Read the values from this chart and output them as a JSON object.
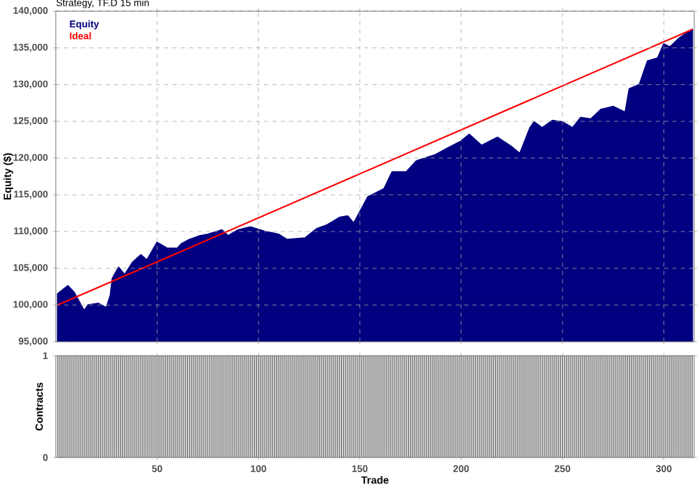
{
  "chart_data": [
    {
      "type": "area",
      "title": "Strategy, TF.D 15 min",
      "ylabel": "Equity ($)",
      "xlim": [
        0,
        315
      ],
      "ylim": [
        95000,
        140000
      ],
      "xticks": [
        50,
        100,
        150,
        200,
        250,
        300
      ],
      "yticks": [
        {
          "value": 95000,
          "label": "95,000"
        },
        {
          "value": 100000,
          "label": "100,000"
        },
        {
          "value": 105000,
          "label": "105,000"
        },
        {
          "value": 110000,
          "label": "110,000"
        },
        {
          "value": 115000,
          "label": "115,000"
        },
        {
          "value": 120000,
          "label": "120,000"
        },
        {
          "value": 125000,
          "label": "125,000"
        },
        {
          "value": 130000,
          "label": "130,000"
        },
        {
          "value": 135000,
          "label": "135,000"
        },
        {
          "value": 140000,
          "label": "140,000"
        }
      ],
      "grid": true,
      "legend": "top left",
      "tick_labels": "y",
      "series": [
        {
          "name": "Equity",
          "color": "#000080",
          "x": [
            1,
            6,
            9,
            12,
            14,
            16,
            21,
            25,
            27,
            28,
            31,
            34,
            38,
            42,
            45,
            50,
            55,
            60,
            62,
            66,
            71,
            75,
            82,
            85,
            90,
            96,
            103,
            110,
            114,
            123,
            129,
            134,
            140,
            144,
            147,
            154,
            162,
            166,
            173,
            178,
            187,
            193,
            200,
            204,
            210,
            218,
            225,
            229,
            234,
            236,
            240,
            245,
            250,
            255,
            259,
            264,
            269,
            275,
            281,
            283,
            288,
            292,
            297,
            300,
            303,
            308,
            314
          ],
          "values": [
            101500,
            102600,
            101700,
            100200,
            99200,
            100000,
            100200,
            99600,
            101300,
            103600,
            105100,
            104100,
            105800,
            106800,
            106100,
            108500,
            107700,
            107700,
            108300,
            108900,
            109400,
            109600,
            110200,
            109400,
            110200,
            110600,
            110000,
            109600,
            108900,
            109100,
            110400,
            110900,
            111900,
            112100,
            111100,
            114700,
            115800,
            118100,
            118100,
            119600,
            120400,
            121300,
            122300,
            123200,
            121700,
            122800,
            121500,
            120600,
            124100,
            124900,
            124100,
            125100,
            124900,
            124100,
            125500,
            125300,
            126600,
            127000,
            126200,
            129400,
            130000,
            133200,
            133600,
            135500,
            135100,
            136400,
            137500
          ]
        },
        {
          "name": "Ideal",
          "type": "line",
          "color": "#ff0000",
          "x": [
            1,
            314
          ],
          "values": [
            100000,
            137500
          ]
        }
      ]
    },
    {
      "type": "bar",
      "xlabel": "Trade",
      "ylabel": "Contracts",
      "xlim": [
        0,
        315
      ],
      "ylim": [
        0,
        1
      ],
      "xticks": [
        50,
        100,
        150,
        200,
        250,
        300
      ],
      "yticks": [
        0,
        1
      ],
      "series": [
        {
          "color": "#8c8c8c",
          "x": [
            1,
            2,
            3,
            4,
            5,
            6,
            7,
            8,
            9,
            10,
            11,
            12,
            13,
            14,
            15,
            16,
            17,
            18,
            19,
            20,
            21,
            22,
            23,
            24,
            25,
            26,
            27,
            28,
            29,
            30,
            31,
            32,
            33,
            34,
            35,
            36,
            37,
            38,
            39,
            40,
            41,
            42,
            43,
            44,
            45,
            46,
            47,
            48,
            49,
            50,
            51,
            52,
            53,
            54,
            55,
            56,
            57,
            58,
            59,
            60,
            61,
            62,
            63,
            64,
            65,
            66,
            67,
            68,
            69,
            70,
            71,
            72,
            73,
            74,
            75,
            76,
            77,
            78,
            79,
            80,
            81,
            82,
            83,
            84,
            85,
            86,
            87,
            88,
            89,
            90,
            91,
            92,
            93,
            94,
            95,
            96,
            97,
            98,
            99,
            100,
            101,
            102,
            103,
            104,
            105,
            106,
            107,
            108,
            109,
            110,
            111,
            112,
            113,
            114,
            115,
            116,
            117,
            118,
            119,
            120,
            121,
            122,
            123,
            124,
            125,
            126,
            127,
            128,
            129,
            130,
            131,
            132,
            133,
            134,
            135,
            136,
            137,
            138,
            139,
            140,
            141,
            142,
            143,
            144,
            145,
            146,
            147,
            148,
            149,
            150,
            151,
            152,
            153,
            154,
            155,
            156,
            157,
            158,
            159,
            160,
            161,
            162,
            163,
            164,
            165,
            166,
            167,
            168,
            169,
            170,
            171,
            172,
            173,
            174,
            175,
            176,
            177,
            178,
            179,
            180,
            181,
            182,
            183,
            184,
            185,
            186,
            187,
            188,
            189,
            190,
            191,
            192,
            193,
            194,
            195,
            196,
            197,
            198,
            199,
            200,
            201,
            202,
            203,
            204,
            205,
            206,
            207,
            208,
            209,
            210,
            211,
            212,
            213,
            214,
            215,
            216,
            217,
            218,
            219,
            220,
            221,
            222,
            223,
            224,
            225,
            226,
            227,
            228,
            229,
            230,
            231,
            232,
            233,
            234,
            235,
            236,
            237,
            238,
            239,
            240,
            241,
            242,
            243,
            244,
            245,
            246,
            247,
            248,
            249,
            250,
            251,
            252,
            253,
            254,
            255,
            256,
            257,
            258,
            259,
            260,
            261,
            262,
            263,
            264,
            265,
            266,
            267,
            268,
            269,
            270,
            271,
            272,
            273,
            274,
            275,
            276,
            277,
            278,
            279,
            280,
            281,
            282,
            283,
            284,
            285,
            286,
            287,
            288,
            289,
            290,
            291,
            292,
            293,
            294,
            295,
            296,
            297,
            298,
            299,
            300,
            301,
            302,
            303,
            304,
            305,
            306,
            307,
            308,
            309,
            310,
            311,
            312,
            313,
            314
          ],
          "values": [
            1,
            1,
            1,
            1,
            1,
            1,
            1,
            1,
            1,
            1,
            1,
            1,
            1,
            1,
            1,
            1,
            1,
            1,
            1,
            1,
            1,
            1,
            1,
            1,
            1,
            1,
            1,
            1,
            1,
            1,
            1,
            1,
            1,
            1,
            1,
            1,
            1,
            1,
            1,
            1,
            1,
            1,
            1,
            1,
            1,
            1,
            1,
            1,
            1,
            1,
            1,
            1,
            1,
            1,
            1,
            1,
            1,
            1,
            1,
            1,
            1,
            1,
            1,
            1,
            1,
            1,
            1,
            1,
            1,
            1,
            1,
            1,
            1,
            1,
            1,
            1,
            1,
            1,
            1,
            1,
            1,
            1,
            1,
            1,
            1,
            1,
            1,
            1,
            1,
            1,
            1,
            1,
            1,
            1,
            1,
            1,
            1,
            1,
            1,
            1,
            1,
            1,
            1,
            1,
            1,
            1,
            1,
            1,
            1,
            1,
            1,
            1,
            1,
            1,
            1,
            1,
            1,
            1,
            1,
            1,
            1,
            1,
            1,
            1,
            1,
            1,
            1,
            1,
            1,
            1,
            1,
            1,
            1,
            1,
            1,
            1,
            1,
            1,
            1,
            1,
            1,
            1,
            1,
            1,
            1,
            1,
            1,
            1,
            1,
            1,
            1,
            1,
            1,
            1,
            1,
            1,
            1,
            1,
            1,
            1,
            1,
            1,
            1,
            1,
            1,
            1,
            1,
            1,
            1,
            1,
            1,
            1,
            1,
            1,
            1,
            1,
            1,
            1,
            1,
            1,
            1,
            1,
            1,
            1,
            1,
            1,
            1,
            1,
            1,
            1,
            1,
            1,
            1,
            1,
            1,
            1,
            1,
            1,
            1,
            1,
            1,
            1,
            1,
            1,
            1,
            1,
            1,
            1,
            1,
            1,
            1,
            1,
            1,
            1,
            1,
            1,
            1,
            1,
            1,
            1,
            1,
            1,
            1,
            1,
            1,
            1,
            1,
            1,
            1,
            1,
            1,
            1,
            1,
            1,
            1,
            1,
            1,
            1,
            1,
            1,
            1,
            1,
            1,
            1,
            1,
            1,
            1,
            1,
            1,
            1,
            1,
            1,
            1,
            1,
            1,
            1,
            1,
            1,
            1,
            1,
            1,
            1,
            1,
            1,
            1,
            1,
            1,
            1,
            1,
            1,
            1,
            1,
            1,
            1,
            1,
            1,
            1,
            1,
            1,
            1,
            1,
            1,
            1,
            1,
            1,
            1,
            1,
            1,
            1,
            1,
            1,
            1,
            1,
            1,
            1,
            1,
            1,
            1,
            1,
            1,
            1,
            1,
            1,
            1,
            1,
            1,
            1,
            1,
            1,
            1,
            1,
            1,
            1,
            1
          ]
        }
      ]
    }
  ]
}
